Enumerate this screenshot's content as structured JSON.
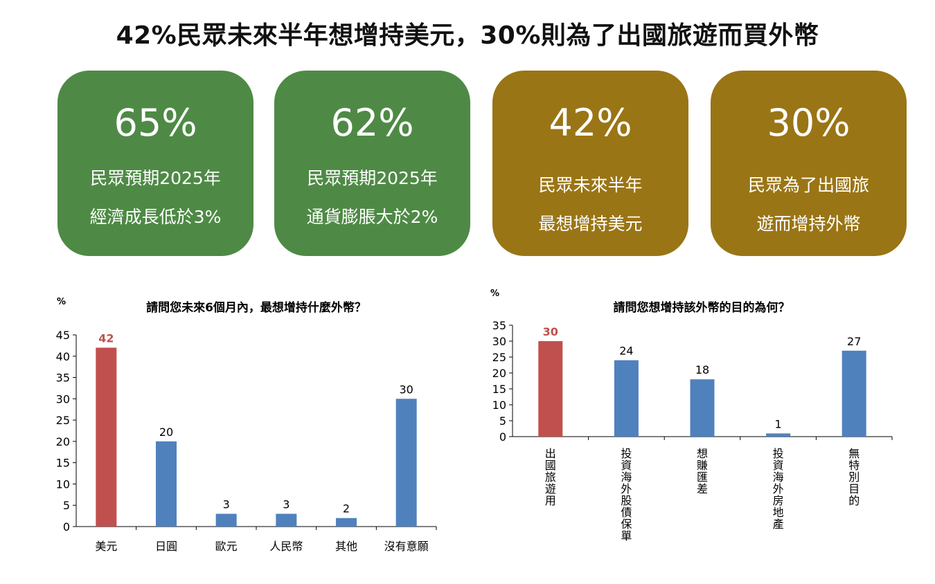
{
  "page_title": "42%民眾未來半年想增持美元，30%則為了出國旅遊而買外幣",
  "colors": {
    "green": "#4e8a45",
    "gold": "#9a7515",
    "bar_blue": "#4f81bd",
    "bar_red": "#c0504d"
  },
  "cards": [
    {
      "value": "65%",
      "line1": "民眾預期2025年",
      "line2": "經濟成長低於3%"
    },
    {
      "value": "62%",
      "line1": "民眾預期2025年",
      "line2": "通貨膨脹大於2%"
    },
    {
      "value": "42%",
      "line1": "民眾未來半年",
      "line2": "最想增持美元"
    },
    {
      "value": "30%",
      "line1": "民眾為了出國旅",
      "line2": "遊而增持外幣"
    }
  ],
  "chart_data": [
    {
      "type": "bar",
      "title": "請問您未來6個月內，最想增持什麼外幣？",
      "ylabel": "%",
      "categories": [
        "美元",
        "日圓",
        "歐元",
        "人民幣",
        "其他",
        "沒有意願"
      ],
      "values": [
        42,
        20,
        3,
        3,
        2,
        30
      ],
      "value_labels": [
        "42",
        "20",
        "3",
        "3",
        "2",
        "30"
      ],
      "highlight_index": 0,
      "ylim": [
        0,
        45
      ],
      "yticks": [
        "0",
        "5",
        "10",
        "15",
        "20",
        "25",
        "30",
        "35",
        "40",
        "45"
      ],
      "grid": false
    },
    {
      "type": "bar",
      "title": "請問您想增持該外幣的目的為何？",
      "ylabel": "%",
      "categories": [
        "出國旅遊用",
        "投資海外股債保單",
        "想賺匯差",
        "投資海外房地產",
        "無特別目的"
      ],
      "values": [
        30,
        24,
        18,
        1,
        27
      ],
      "value_labels": [
        "30",
        "24",
        "18",
        "1",
        "27"
      ],
      "highlight_index": 0,
      "ylim": [
        0,
        35
      ],
      "yticks": [
        "0",
        "5",
        "10",
        "15",
        "20",
        "25",
        "30",
        "35"
      ],
      "grid": false
    }
  ]
}
